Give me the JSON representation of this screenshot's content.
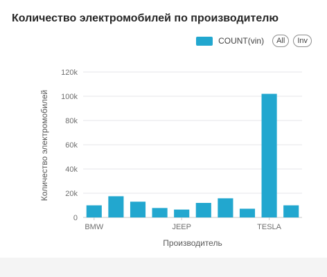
{
  "header": {
    "title": "Количество электромобилей по производителю"
  },
  "legend": {
    "label": "COUNT(vin)",
    "all_label": "All",
    "inv_label": "Inv"
  },
  "colors": {
    "bar": "#22a7cf",
    "grid": "#e6e6ea",
    "axis": "#c8c8c8"
  },
  "chart_data": {
    "type": "bar",
    "series": [
      {
        "name": "COUNT(vin)"
      }
    ],
    "tick_labels": [
      "BMW",
      "JEEP",
      "TESLA"
    ],
    "tick_positions": [
      0,
      4,
      8
    ],
    "values": [
      10000,
      17500,
      13000,
      7800,
      6500,
      12000,
      15800,
      7200,
      102000,
      10000
    ],
    "ylim": [
      0,
      120000
    ],
    "yticks": [
      0,
      20000,
      40000,
      60000,
      80000,
      100000,
      120000
    ],
    "ytick_labels": [
      "0",
      "20k",
      "40k",
      "60k",
      "80k",
      "100k",
      "120k"
    ],
    "xlabel": "Производитель",
    "ylabel": "Количество электромобилей",
    "grid": true,
    "legend_position": "top-right"
  }
}
